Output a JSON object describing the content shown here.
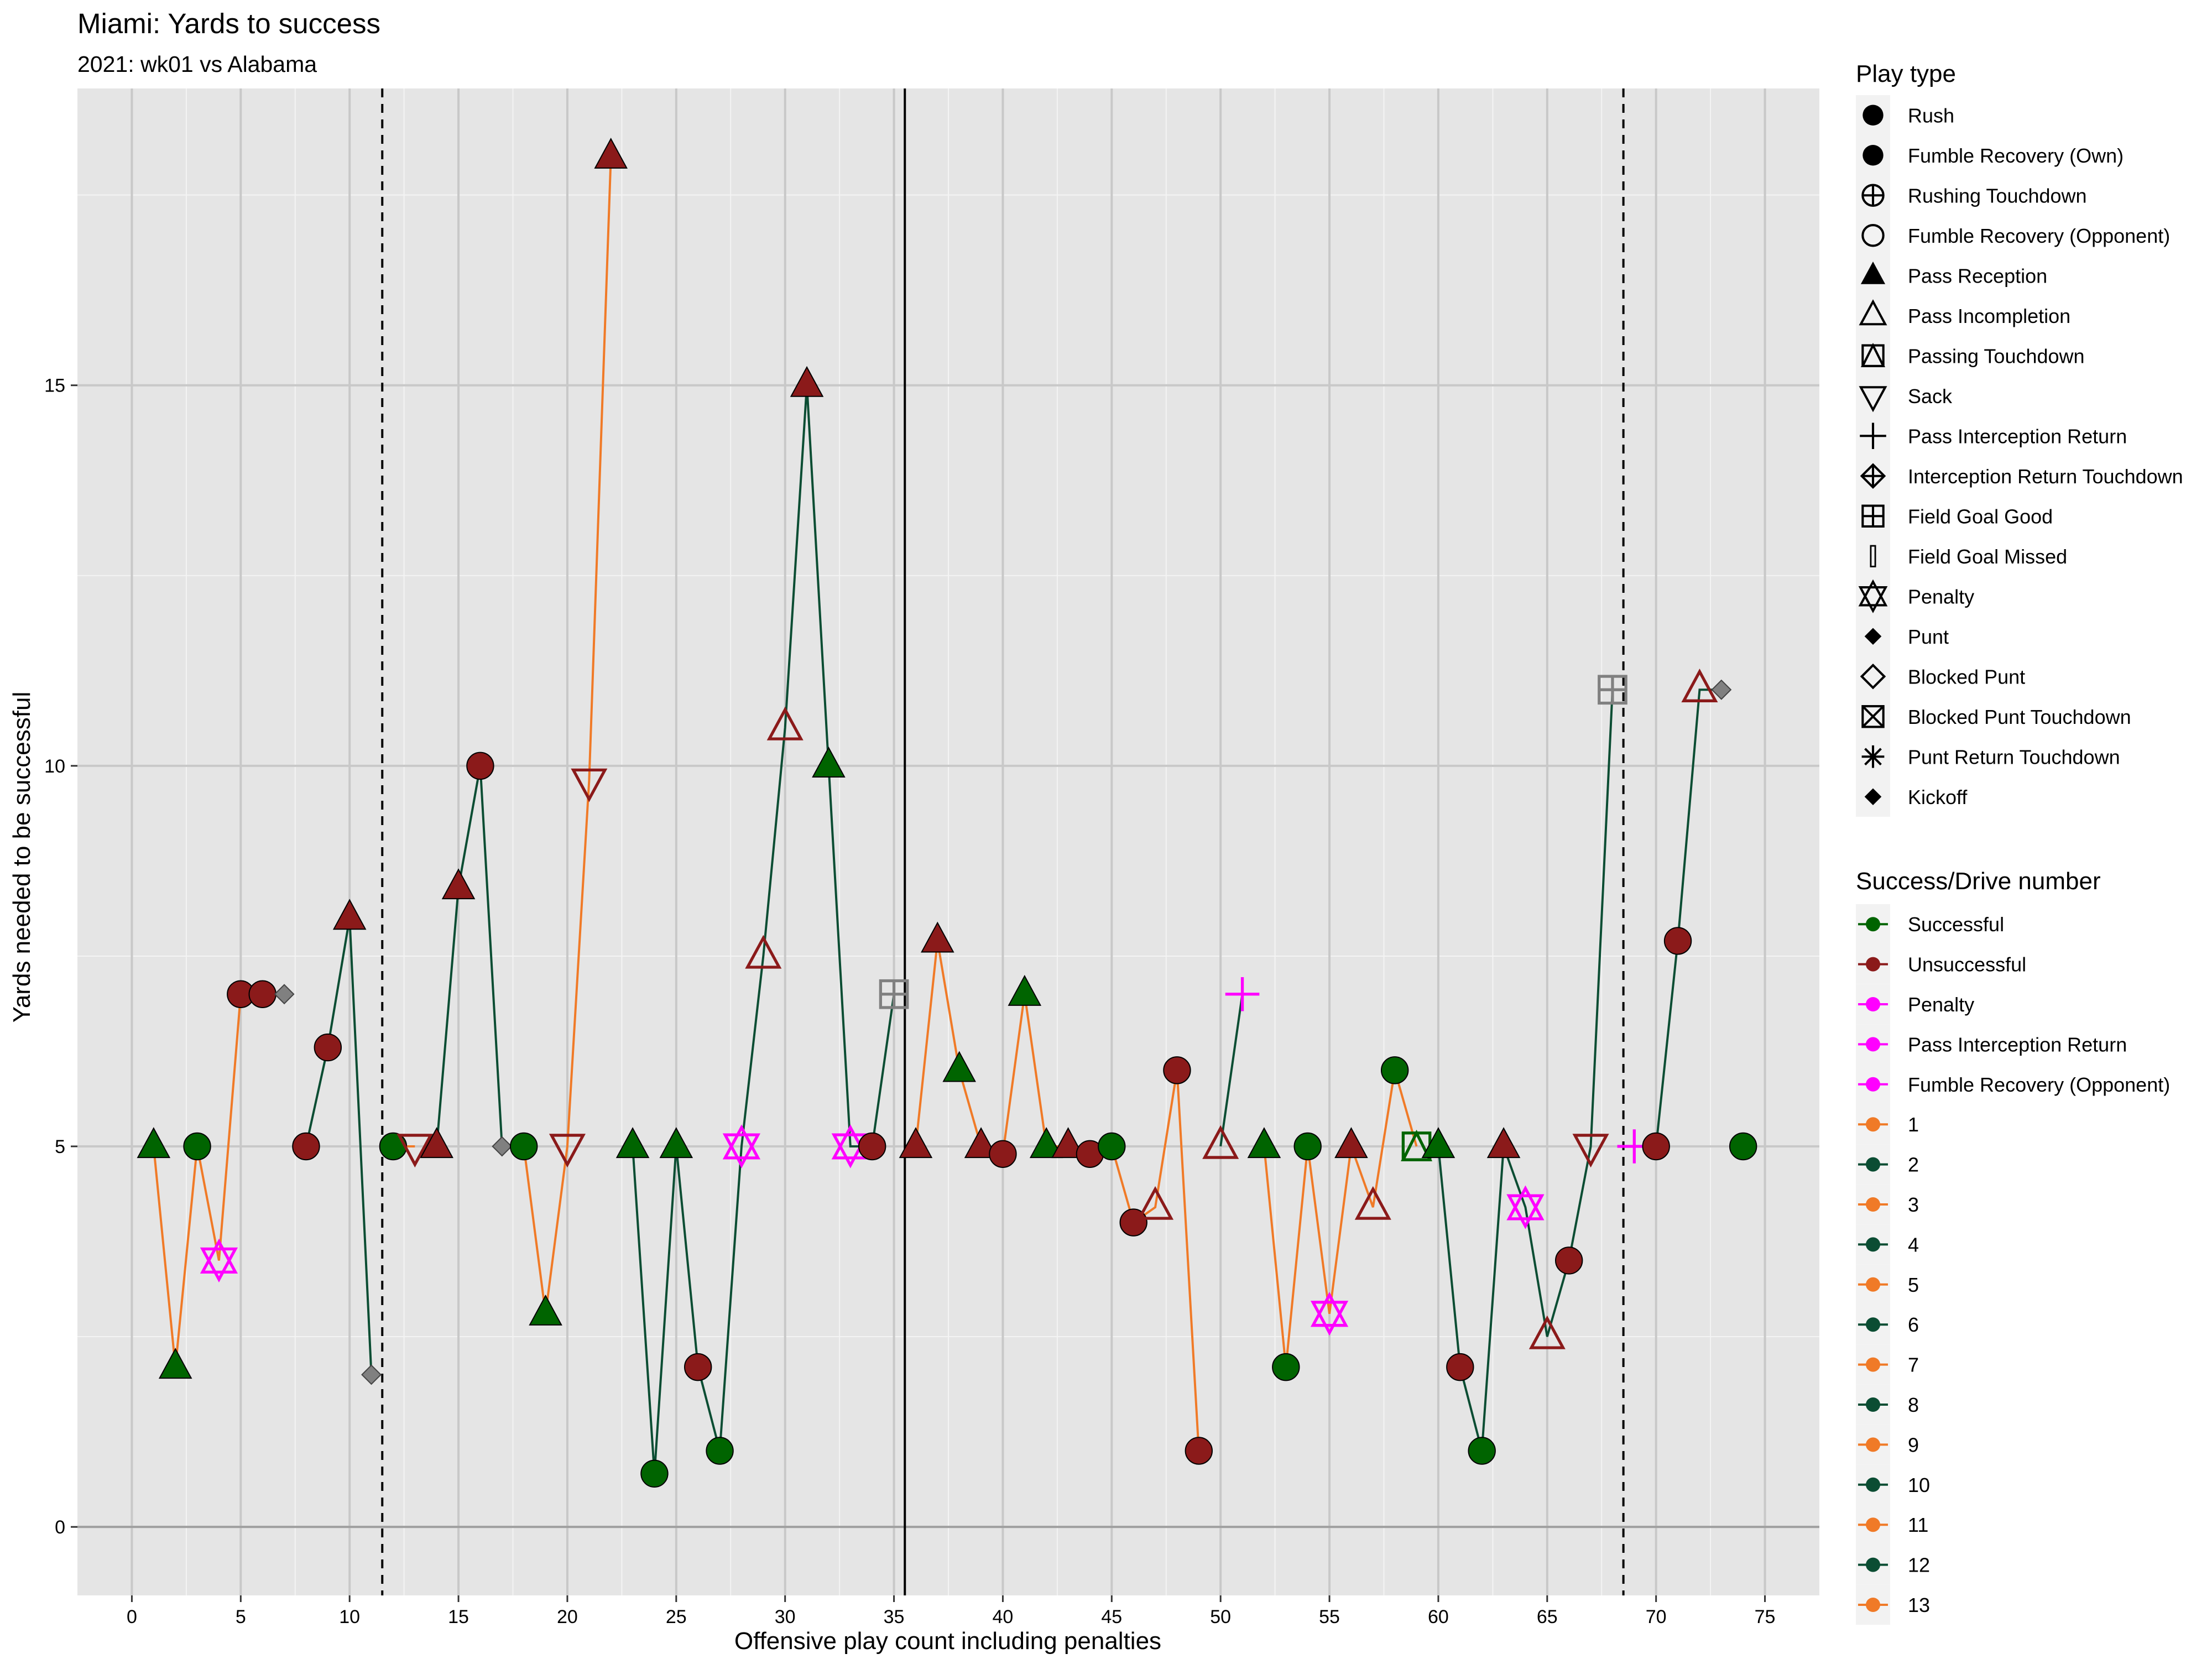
{
  "chart_data": {
    "type": "scatter",
    "title": "Miami: Yards to success",
    "subtitle": "2021: wk01 vs Alabama",
    "xlabel": "Offensive play count including penalties",
    "ylabel": "Yards needed to be successful",
    "xlim": [
      -2.5,
      77.5
    ],
    "ylim": [
      -0.9,
      18.9
    ],
    "x_ticks": [
      0,
      5,
      10,
      15,
      20,
      25,
      30,
      35,
      40,
      45,
      50,
      55,
      60,
      65,
      70,
      75
    ],
    "y_ticks": [
      0,
      5,
      10,
      15
    ],
    "grid": true,
    "quarter_lines": [
      {
        "x": 11.5,
        "style": "dashed"
      },
      {
        "x": 35.5,
        "style": "solid"
      },
      {
        "x": 68.5,
        "style": "dashed"
      }
    ],
    "colors": {
      "Successful": "#006400",
      "Unsuccessful": "#8b1a1a",
      "Penalty": "#ff00ff",
      "Pass Interception Return": "#ff00ff",
      "Fumble Recovery (Opponent)": "#ff00ff",
      "odd_drive": "#f07a27",
      "even_drive": "#0b4d33",
      "neutral": "#808080",
      "panel": "#e5e5e5"
    },
    "legend_play_type": {
      "title": "Play type",
      "items": [
        {
          "label": "Rush",
          "shape": "circle"
        },
        {
          "label": "Fumble Recovery (Own)",
          "shape": "circle"
        },
        {
          "label": "Rushing Touchdown",
          "shape": "circle-plus"
        },
        {
          "label": "Fumble Recovery (Opponent)",
          "shape": "circle-open"
        },
        {
          "label": "Pass Reception",
          "shape": "triangle"
        },
        {
          "label": "Pass Incompletion",
          "shape": "triangle-open"
        },
        {
          "label": "Passing Touchdown",
          "shape": "square-triangle"
        },
        {
          "label": "Sack",
          "shape": "triangle-down-open"
        },
        {
          "label": "Pass Interception Return",
          "shape": "plus"
        },
        {
          "label": "Interception Return Touchdown",
          "shape": "diamond-plus"
        },
        {
          "label": "Field Goal Good",
          "shape": "square-plus"
        },
        {
          "label": "Field Goal Missed",
          "shape": "bar"
        },
        {
          "label": "Penalty",
          "shape": "star-of-david"
        },
        {
          "label": "Punt",
          "shape": "diamond"
        },
        {
          "label": "Blocked Punt",
          "shape": "diamond-open"
        },
        {
          "label": "Blocked Punt Touchdown",
          "shape": "square-x"
        },
        {
          "label": "Punt Return Touchdown",
          "shape": "asterisk"
        },
        {
          "label": "Kickoff",
          "shape": "diamond"
        }
      ]
    },
    "legend_success": {
      "title": "Success/Drive number",
      "items": [
        {
          "label": "Successful",
          "color": "#006400"
        },
        {
          "label": "Unsuccessful",
          "color": "#8b1a1a"
        },
        {
          "label": "Penalty",
          "color": "#ff00ff"
        },
        {
          "label": "Pass Interception Return",
          "color": "#ff00ff"
        },
        {
          "label": "Fumble Recovery (Opponent)",
          "color": "#ff00ff"
        },
        {
          "label": "1",
          "color": "#f07a27"
        },
        {
          "label": "2",
          "color": "#0b4d33"
        },
        {
          "label": "3",
          "color": "#f07a27"
        },
        {
          "label": "4",
          "color": "#0b4d33"
        },
        {
          "label": "5",
          "color": "#f07a27"
        },
        {
          "label": "6",
          "color": "#0b4d33"
        },
        {
          "label": "7",
          "color": "#f07a27"
        },
        {
          "label": "8",
          "color": "#0b4d33"
        },
        {
          "label": "9",
          "color": "#f07a27"
        },
        {
          "label": "10",
          "color": "#0b4d33"
        },
        {
          "label": "11",
          "color": "#f07a27"
        },
        {
          "label": "12",
          "color": "#0b4d33"
        },
        {
          "label": "13",
          "color": "#f07a27"
        }
      ]
    },
    "drives": [
      {
        "drive": 1,
        "color": "#f07a27",
        "points": [
          [
            1,
            5
          ],
          [
            2,
            2.1
          ],
          [
            3,
            5
          ],
          [
            4,
            3.5
          ],
          [
            5,
            7
          ],
          [
            6,
            7
          ],
          [
            7,
            7
          ]
        ]
      },
      {
        "drive": 2,
        "color": "#0b4d33",
        "points": [
          [
            8,
            5
          ],
          [
            9,
            6.3
          ],
          [
            10,
            8
          ],
          [
            11,
            2
          ]
        ]
      },
      {
        "drive": 3,
        "color": "#f07a27",
        "points": [
          [
            12,
            5
          ],
          [
            13,
            5
          ]
        ]
      },
      {
        "drive": 4,
        "color": "#0b4d33",
        "points": [
          [
            14,
            5
          ],
          [
            15,
            8.4
          ],
          [
            16,
            10
          ],
          [
            17,
            5
          ]
        ]
      },
      {
        "drive": 5,
        "color": "#f07a27",
        "points": [
          [
            18,
            5
          ],
          [
            19,
            2.8
          ],
          [
            20,
            5
          ],
          [
            21,
            9.8
          ],
          [
            22,
            18
          ]
        ]
      },
      {
        "drive": 6,
        "color": "#0b4d33",
        "points": [
          [
            23,
            5
          ],
          [
            24,
            0.7
          ],
          [
            25,
            5
          ],
          [
            26,
            2.1
          ],
          [
            27,
            1
          ],
          [
            28,
            5
          ],
          [
            29,
            7.5
          ],
          [
            30,
            10.5
          ],
          [
            31,
            15
          ],
          [
            32,
            10
          ],
          [
            33,
            5
          ],
          [
            34,
            5
          ],
          [
            35,
            7
          ]
        ]
      },
      {
        "drive": 7,
        "color": "#f07a27",
        "points": [
          [
            36,
            5
          ],
          [
            37,
            7.7
          ],
          [
            38,
            6
          ],
          [
            39,
            5
          ],
          [
            40,
            4.9
          ],
          [
            41,
            7
          ],
          [
            42,
            5
          ],
          [
            43,
            5
          ],
          [
            44,
            4.9
          ],
          [
            45,
            5
          ],
          [
            46,
            4
          ],
          [
            47,
            4.2
          ],
          [
            48,
            6
          ],
          [
            49,
            1
          ]
        ]
      },
      {
        "drive": 8,
        "color": "#0b4d33",
        "points": [
          [
            50,
            5
          ],
          [
            51,
            7
          ]
        ]
      },
      {
        "drive": 9,
        "color": "#f07a27",
        "points": [
          [
            52,
            5
          ],
          [
            53,
            2.1
          ],
          [
            54,
            5
          ],
          [
            55,
            2.8
          ],
          [
            56,
            5
          ],
          [
            57,
            4.2
          ],
          [
            58,
            6
          ],
          [
            59,
            5
          ]
        ]
      },
      {
        "drive": 10,
        "color": "#0b4d33",
        "points": [
          [
            60,
            5
          ],
          [
            61,
            2.1
          ],
          [
            62,
            1
          ],
          [
            63,
            5
          ],
          [
            64,
            4.2
          ],
          [
            65,
            2.5
          ],
          [
            66,
            3.5
          ],
          [
            67,
            5
          ],
          [
            68,
            11
          ]
        ]
      },
      {
        "drive": 11,
        "color": "#f07a27",
        "points": [
          [
            69,
            5
          ]
        ]
      },
      {
        "drive": 12,
        "color": "#0b4d33",
        "points": [
          [
            70,
            5
          ],
          [
            71,
            7.7
          ],
          [
            72,
            11
          ],
          [
            73,
            11
          ]
        ]
      },
      {
        "drive": 13,
        "color": "#f07a27",
        "points": [
          [
            74,
            5
          ]
        ]
      }
    ],
    "plays": [
      {
        "x": 1,
        "y": 5,
        "shape": "triangle",
        "status": "Successful"
      },
      {
        "x": 2,
        "y": 2.1,
        "shape": "triangle",
        "status": "Successful"
      },
      {
        "x": 3,
        "y": 5,
        "shape": "circle",
        "status": "Successful"
      },
      {
        "x": 4,
        "y": 3.5,
        "shape": "star-of-david",
        "status": "Penalty"
      },
      {
        "x": 5,
        "y": 7,
        "shape": "circle",
        "status": "Unsuccessful"
      },
      {
        "x": 6,
        "y": 7,
        "shape": "circle",
        "status": "Unsuccessful"
      },
      {
        "x": 7,
        "y": 7,
        "shape": "diamond",
        "status": "neutral"
      },
      {
        "x": 8,
        "y": 5,
        "shape": "circle",
        "status": "Unsuccessful"
      },
      {
        "x": 9,
        "y": 6.3,
        "shape": "circle",
        "status": "Unsuccessful"
      },
      {
        "x": 10,
        "y": 8,
        "shape": "triangle",
        "status": "Unsuccessful"
      },
      {
        "x": 11,
        "y": 2,
        "shape": "diamond",
        "status": "neutral"
      },
      {
        "x": 12,
        "y": 5,
        "shape": "circle",
        "status": "Successful"
      },
      {
        "x": 13,
        "y": 5,
        "shape": "triangle-down-open",
        "status": "Unsuccessful"
      },
      {
        "x": 14,
        "y": 5,
        "shape": "triangle",
        "status": "Unsuccessful"
      },
      {
        "x": 15,
        "y": 8.4,
        "shape": "triangle",
        "status": "Unsuccessful"
      },
      {
        "x": 16,
        "y": 10,
        "shape": "circle",
        "status": "Unsuccessful"
      },
      {
        "x": 17,
        "y": 5,
        "shape": "diamond",
        "status": "neutral"
      },
      {
        "x": 18,
        "y": 5,
        "shape": "circle",
        "status": "Successful"
      },
      {
        "x": 19,
        "y": 2.8,
        "shape": "triangle",
        "status": "Successful"
      },
      {
        "x": 20,
        "y": 5,
        "shape": "triangle-down-open",
        "status": "Unsuccessful"
      },
      {
        "x": 21,
        "y": 9.8,
        "shape": "triangle-down-open",
        "status": "Unsuccessful"
      },
      {
        "x": 22,
        "y": 18,
        "shape": "triangle",
        "status": "Unsuccessful"
      },
      {
        "x": 23,
        "y": 5,
        "shape": "triangle",
        "status": "Successful"
      },
      {
        "x": 24,
        "y": 0.7,
        "shape": "circle",
        "status": "Successful"
      },
      {
        "x": 25,
        "y": 5,
        "shape": "triangle",
        "status": "Successful"
      },
      {
        "x": 26,
        "y": 2.1,
        "shape": "circle",
        "status": "Unsuccessful"
      },
      {
        "x": 27,
        "y": 1,
        "shape": "circle",
        "status": "Successful"
      },
      {
        "x": 28,
        "y": 5,
        "shape": "star-of-david",
        "status": "Penalty"
      },
      {
        "x": 29,
        "y": 7.5,
        "shape": "triangle-open",
        "status": "Unsuccessful"
      },
      {
        "x": 30,
        "y": 10.5,
        "shape": "triangle-open",
        "status": "Unsuccessful"
      },
      {
        "x": 31,
        "y": 15,
        "shape": "triangle",
        "status": "Unsuccessful"
      },
      {
        "x": 32,
        "y": 10,
        "shape": "triangle",
        "status": "Successful"
      },
      {
        "x": 33,
        "y": 5,
        "shape": "star-of-david",
        "status": "Penalty"
      },
      {
        "x": 34,
        "y": 5,
        "shape": "circle",
        "status": "Unsuccessful"
      },
      {
        "x": 35,
        "y": 7,
        "shape": "square-plus",
        "status": "neutral"
      },
      {
        "x": 36,
        "y": 5,
        "shape": "triangle",
        "status": "Unsuccessful"
      },
      {
        "x": 37,
        "y": 7.7,
        "shape": "triangle",
        "status": "Unsuccessful"
      },
      {
        "x": 38,
        "y": 6,
        "shape": "triangle",
        "status": "Successful"
      },
      {
        "x": 39,
        "y": 5,
        "shape": "triangle",
        "status": "Unsuccessful"
      },
      {
        "x": 40,
        "y": 4.9,
        "shape": "circle",
        "status": "Unsuccessful"
      },
      {
        "x": 41,
        "y": 7,
        "shape": "triangle",
        "status": "Successful"
      },
      {
        "x": 42,
        "y": 5,
        "shape": "triangle",
        "status": "Successful"
      },
      {
        "x": 43,
        "y": 5,
        "shape": "triangle",
        "status": "Unsuccessful"
      },
      {
        "x": 44,
        "y": 4.9,
        "shape": "circle",
        "status": "Unsuccessful"
      },
      {
        "x": 45,
        "y": 5,
        "shape": "circle",
        "status": "Successful"
      },
      {
        "x": 46,
        "y": 4,
        "shape": "circle",
        "status": "Unsuccessful"
      },
      {
        "x": 47,
        "y": 4.2,
        "shape": "triangle-open",
        "status": "Unsuccessful"
      },
      {
        "x": 48,
        "y": 6,
        "shape": "circle",
        "status": "Unsuccessful"
      },
      {
        "x": 49,
        "y": 1,
        "shape": "circle",
        "status": "Unsuccessful"
      },
      {
        "x": 50,
        "y": 5,
        "shape": "triangle-open",
        "status": "Unsuccessful"
      },
      {
        "x": 51,
        "y": 7,
        "shape": "plus",
        "status": "Pass Interception Return"
      },
      {
        "x": 52,
        "y": 5,
        "shape": "triangle",
        "status": "Successful"
      },
      {
        "x": 53,
        "y": 2.1,
        "shape": "circle",
        "status": "Successful"
      },
      {
        "x": 54,
        "y": 5,
        "shape": "circle",
        "status": "Successful"
      },
      {
        "x": 55,
        "y": 2.8,
        "shape": "star-of-david",
        "status": "Penalty"
      },
      {
        "x": 56,
        "y": 5,
        "shape": "triangle",
        "status": "Unsuccessful"
      },
      {
        "x": 57,
        "y": 4.2,
        "shape": "triangle-open",
        "status": "Unsuccessful"
      },
      {
        "x": 58,
        "y": 6,
        "shape": "circle",
        "status": "Successful"
      },
      {
        "x": 59,
        "y": 5,
        "shape": "square-triangle",
        "status": "Successful"
      },
      {
        "x": 60,
        "y": 5,
        "shape": "triangle",
        "status": "Successful"
      },
      {
        "x": 61,
        "y": 2.1,
        "shape": "circle",
        "status": "Unsuccessful"
      },
      {
        "x": 62,
        "y": 1,
        "shape": "circle",
        "status": "Successful"
      },
      {
        "x": 63,
        "y": 5,
        "shape": "triangle",
        "status": "Unsuccessful"
      },
      {
        "x": 64,
        "y": 4.2,
        "shape": "star-of-david",
        "status": "Penalty"
      },
      {
        "x": 65,
        "y": 2.5,
        "shape": "triangle-open",
        "status": "Unsuccessful"
      },
      {
        "x": 66,
        "y": 3.5,
        "shape": "circle",
        "status": "Unsuccessful"
      },
      {
        "x": 67,
        "y": 5,
        "shape": "triangle-down-open",
        "status": "Unsuccessful"
      },
      {
        "x": 68,
        "y": 11,
        "shape": "square-plus",
        "status": "neutral"
      },
      {
        "x": 69,
        "y": 5,
        "shape": "plus",
        "status": "Pass Interception Return"
      },
      {
        "x": 70,
        "y": 5,
        "shape": "circle",
        "status": "Unsuccessful"
      },
      {
        "x": 71,
        "y": 7.7,
        "shape": "circle",
        "status": "Unsuccessful"
      },
      {
        "x": 72,
        "y": 11,
        "shape": "triangle-open",
        "status": "Unsuccessful"
      },
      {
        "x": 73,
        "y": 11,
        "shape": "diamond",
        "status": "neutral"
      },
      {
        "x": 74,
        "y": 5,
        "shape": "circle",
        "status": "Successful"
      }
    ]
  }
}
